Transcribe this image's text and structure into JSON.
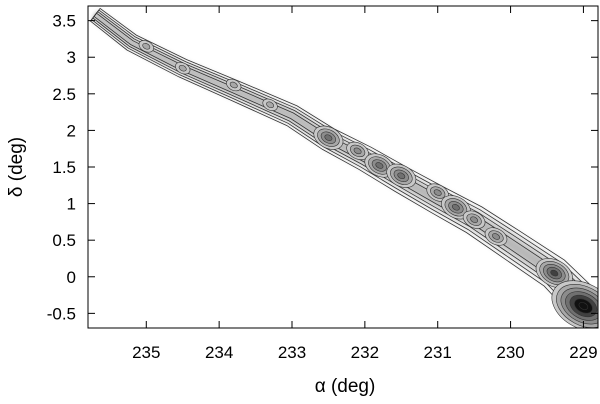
{
  "chart_data": {
    "type": "contour",
    "title": "",
    "xlabel": "α (deg)",
    "ylabel": "δ (deg)",
    "xlim": [
      235.8,
      228.8
    ],
    "ylim": [
      -0.7,
      3.7
    ],
    "x_reversed": true,
    "grid": false,
    "x_ticks": [
      {
        "value": 235,
        "label": "235"
      },
      {
        "value": 234,
        "label": "234"
      },
      {
        "value": 233,
        "label": "233"
      },
      {
        "value": 232,
        "label": "232"
      },
      {
        "value": 231,
        "label": "231"
      },
      {
        "value": 230,
        "label": "230"
      },
      {
        "value": 229,
        "label": "229"
      }
    ],
    "y_ticks": [
      {
        "value": -0.5,
        "label": "-0.5"
      },
      {
        "value": 0,
        "label": "0"
      },
      {
        "value": 0.5,
        "label": "0.5"
      },
      {
        "value": 1,
        "label": "1"
      },
      {
        "value": 1.5,
        "label": "1.5"
      },
      {
        "value": 2,
        "label": "2"
      },
      {
        "value": 2.5,
        "label": "2.5"
      },
      {
        "value": 3,
        "label": "3"
      },
      {
        "value": 3.5,
        "label": "3.5"
      }
    ],
    "stream_track": [
      {
        "x": 235.7,
        "y": 3.58
      },
      {
        "x": 235.2,
        "y": 3.2
      },
      {
        "x": 234.5,
        "y": 2.85
      },
      {
        "x": 233.8,
        "y": 2.55
      },
      {
        "x": 233.0,
        "y": 2.2
      },
      {
        "x": 232.5,
        "y": 1.88
      },
      {
        "x": 232.0,
        "y": 1.62
      },
      {
        "x": 231.5,
        "y": 1.33
      },
      {
        "x": 231.0,
        "y": 1.05
      },
      {
        "x": 230.5,
        "y": 0.78
      },
      {
        "x": 230.0,
        "y": 0.45
      },
      {
        "x": 229.4,
        "y": 0.05
      },
      {
        "x": 229.1,
        "y": -0.25
      },
      {
        "x": 229.0,
        "y": -0.4
      }
    ],
    "density_peaks": [
      {
        "x": 235.0,
        "y": 3.15,
        "level": 2
      },
      {
        "x": 234.5,
        "y": 2.85,
        "level": 2
      },
      {
        "x": 233.8,
        "y": 2.62,
        "level": 2
      },
      {
        "x": 233.3,
        "y": 2.35,
        "level": 2
      },
      {
        "x": 232.5,
        "y": 1.9,
        "level": 4
      },
      {
        "x": 232.1,
        "y": 1.72,
        "level": 3
      },
      {
        "x": 231.8,
        "y": 1.52,
        "level": 4
      },
      {
        "x": 231.5,
        "y": 1.38,
        "level": 4
      },
      {
        "x": 231.0,
        "y": 1.15,
        "level": 3
      },
      {
        "x": 230.75,
        "y": 0.95,
        "level": 4
      },
      {
        "x": 230.5,
        "y": 0.78,
        "level": 3
      },
      {
        "x": 230.2,
        "y": 0.55,
        "level": 3
      },
      {
        "x": 229.4,
        "y": 0.05,
        "level": 5
      },
      {
        "x": 229.0,
        "y": -0.4,
        "level": 7
      }
    ]
  }
}
